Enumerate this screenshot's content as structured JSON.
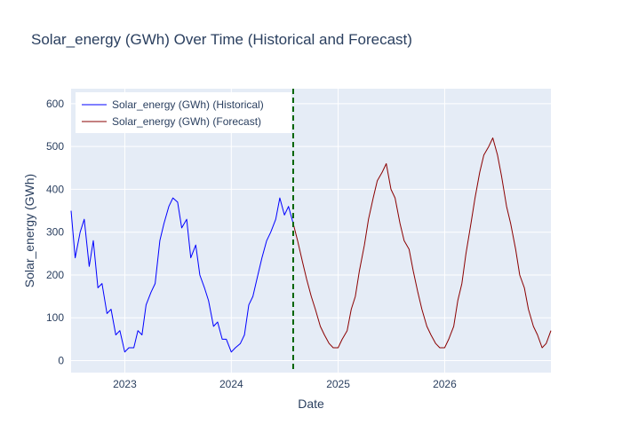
{
  "chart_data": {
    "type": "line",
    "title": "Solar_energy (GWh) Over Time (Historical and Forecast)",
    "xlabel": "Date",
    "ylabel": "Solar_energy (GWh)",
    "x_type": "date",
    "xlim": [
      "2022-07-01",
      "2026-12-31"
    ],
    "ylim": [
      -28,
      635
    ],
    "x_ticks": [
      "2023",
      "2024",
      "2025",
      "2026"
    ],
    "y_ticks": [
      0,
      100,
      200,
      300,
      400,
      500,
      600
    ],
    "grid": true,
    "legend_position": "top-left",
    "forecast_start": "2024-07-31",
    "colors": {
      "historical": "#0000ff",
      "forecast": "#8b0000",
      "divider": "#006400",
      "plot_bg": "#e5ecf6",
      "grid": "#ffffff",
      "text": "#2a3f5f"
    },
    "series": [
      {
        "name": "Solar_energy (GWh) (Historical)",
        "key": "historical",
        "x": [
          "2022-07-01",
          "2022-07-15",
          "2022-08-01",
          "2022-08-15",
          "2022-09-01",
          "2022-09-15",
          "2022-10-01",
          "2022-10-15",
          "2022-11-01",
          "2022-11-15",
          "2022-12-01",
          "2022-12-15",
          "2023-01-01",
          "2023-01-15",
          "2023-02-01",
          "2023-02-15",
          "2023-03-01",
          "2023-03-15",
          "2023-04-01",
          "2023-04-15",
          "2023-05-01",
          "2023-05-15",
          "2023-06-01",
          "2023-06-15",
          "2023-07-01",
          "2023-07-15",
          "2023-08-01",
          "2023-08-15",
          "2023-09-01",
          "2023-09-15",
          "2023-10-01",
          "2023-10-15",
          "2023-11-01",
          "2023-11-15",
          "2023-12-01",
          "2023-12-15",
          "2024-01-01",
          "2024-01-15",
          "2024-02-01",
          "2024-02-15",
          "2024-03-01",
          "2024-03-15",
          "2024-04-01",
          "2024-04-15",
          "2024-05-01",
          "2024-05-15",
          "2024-06-01",
          "2024-06-15",
          "2024-07-01",
          "2024-07-15",
          "2024-07-31"
        ],
        "values": [
          350,
          240,
          300,
          330,
          220,
          280,
          170,
          180,
          110,
          120,
          60,
          70,
          20,
          30,
          30,
          70,
          60,
          130,
          160,
          180,
          280,
          320,
          360,
          380,
          370,
          310,
          330,
          240,
          270,
          200,
          170,
          140,
          80,
          90,
          50,
          50,
          20,
          30,
          40,
          60,
          130,
          150,
          200,
          240,
          280,
          300,
          330,
          380,
          340,
          360,
          320
        ]
      },
      {
        "name": "Solar_energy (GWh) (Forecast)",
        "key": "forecast",
        "x": [
          "2024-07-31",
          "2024-08-15",
          "2024-09-01",
          "2024-09-15",
          "2024-10-01",
          "2024-10-15",
          "2024-11-01",
          "2024-11-15",
          "2024-12-01",
          "2024-12-15",
          "2025-01-01",
          "2025-01-15",
          "2025-02-01",
          "2025-02-15",
          "2025-03-01",
          "2025-03-15",
          "2025-04-01",
          "2025-04-15",
          "2025-05-01",
          "2025-05-15",
          "2025-06-01",
          "2025-06-15",
          "2025-07-01",
          "2025-07-15",
          "2025-08-01",
          "2025-08-15",
          "2025-09-01",
          "2025-09-15",
          "2025-10-01",
          "2025-10-15",
          "2025-11-01",
          "2025-11-15",
          "2025-12-01",
          "2025-12-15",
          "2026-01-01",
          "2026-01-15",
          "2026-02-01",
          "2026-02-15",
          "2026-03-01",
          "2026-03-15",
          "2026-04-01",
          "2026-04-15",
          "2026-05-01",
          "2026-05-15",
          "2026-06-01",
          "2026-06-15",
          "2026-07-01",
          "2026-07-15",
          "2026-08-01",
          "2026-08-15",
          "2026-09-01",
          "2026-09-15",
          "2026-10-01",
          "2026-10-15",
          "2026-11-01",
          "2026-11-15",
          "2026-12-01",
          "2026-12-15",
          "2026-12-31"
        ],
        "values": [
          320,
          280,
          230,
          190,
          150,
          120,
          80,
          60,
          40,
          30,
          30,
          50,
          70,
          120,
          150,
          210,
          270,
          330,
          380,
          420,
          440,
          460,
          400,
          380,
          320,
          280,
          260,
          210,
          160,
          120,
          80,
          60,
          40,
          30,
          30,
          50,
          80,
          140,
          180,
          250,
          320,
          380,
          440,
          480,
          500,
          520,
          480,
          430,
          360,
          320,
          260,
          200,
          170,
          120,
          80,
          60,
          30,
          40,
          70
        ]
      }
    ]
  }
}
